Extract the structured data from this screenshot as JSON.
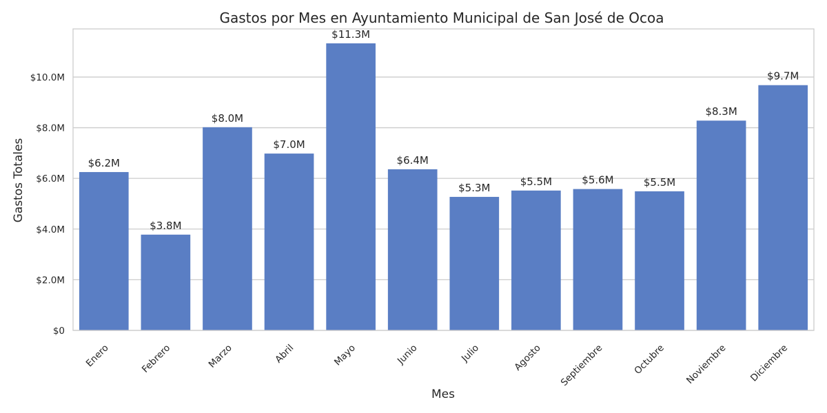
{
  "chart_data": {
    "type": "bar",
    "title": "Gastos por Mes en Ayuntamiento Municipal de San José de Ocoa",
    "xlabel": "Mes",
    "ylabel": "Gastos Totales",
    "categories": [
      "Enero",
      "Febrero",
      "Marzo",
      "Abril",
      "Mayo",
      "Junio",
      "Julio",
      "Agosto",
      "Septiembre",
      "Octubre",
      "Noviembre",
      "Diciembre"
    ],
    "values": [
      6.25,
      3.78,
      8.02,
      6.98,
      11.33,
      6.36,
      5.27,
      5.52,
      5.58,
      5.49,
      8.28,
      9.68
    ],
    "value_labels": [
      "$6.2M",
      "$3.8M",
      "$8.0M",
      "$7.0M",
      "$11.3M",
      "$6.4M",
      "$5.3M",
      "$5.5M",
      "$5.6M",
      "$5.5M",
      "$8.3M",
      "$9.7M"
    ],
    "ylim": [
      0,
      11.9
    ],
    "yticks": [
      0,
      2,
      4,
      6,
      8,
      10
    ],
    "ytick_labels": [
      "$0",
      "$2.0M",
      "$4.0M",
      "$6.0M",
      "$8.0M",
      "$10.0M"
    ],
    "grid": true,
    "bar_color": "#5a7ec4",
    "grid_color": "#cccccc",
    "frame_color": "#cccccc"
  }
}
